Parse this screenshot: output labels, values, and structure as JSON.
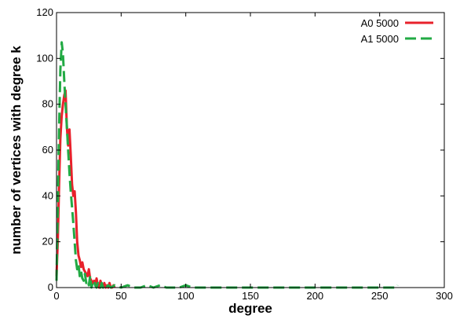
{
  "chart_data": {
    "type": "line",
    "xlabel": "degree",
    "ylabel": "number of vertices with degree k",
    "xlim": [
      0,
      300
    ],
    "ylim": [
      0,
      120
    ],
    "x_ticks": [
      0,
      50,
      100,
      150,
      200,
      250,
      300
    ],
    "y_ticks": [
      0,
      20,
      40,
      60,
      80,
      100,
      120
    ],
    "grid": false,
    "legend_position": "top-right",
    "series": [
      {
        "name": "A0 5000",
        "color": "#e8212b",
        "style": "solid",
        "x": [
          0,
          1,
          2,
          3,
          4,
          5,
          6,
          7,
          8,
          9,
          10,
          11,
          12,
          13,
          14,
          15,
          16,
          17,
          18,
          19,
          20,
          21,
          22,
          23,
          24,
          25,
          26,
          27,
          28,
          29,
          30,
          31,
          32,
          33,
          34,
          35,
          36,
          37,
          38,
          39,
          40,
          41,
          42,
          43,
          44,
          45
        ],
        "y": [
          5,
          20,
          45,
          65,
          75,
          80,
          84,
          86,
          70,
          62,
          69,
          58,
          45,
          40,
          42,
          33,
          20,
          14,
          12,
          9,
          11,
          8,
          7,
          6,
          5,
          8,
          4,
          3,
          2,
          3,
          1,
          4,
          1,
          0,
          3,
          1,
          0,
          2,
          0,
          1,
          0,
          2,
          0,
          0,
          1,
          0
        ]
      },
      {
        "name": "A1 5000",
        "color": "#22aa44",
        "style": "dashed",
        "x": [
          0,
          1,
          2,
          3,
          4,
          5,
          6,
          7,
          8,
          9,
          10,
          11,
          12,
          13,
          14,
          15,
          16,
          17,
          18,
          19,
          20,
          21,
          22,
          23,
          24,
          25,
          26,
          27,
          28,
          29,
          30,
          31,
          32,
          33,
          34,
          35,
          36,
          37,
          38,
          40,
          42,
          45,
          50,
          55,
          60,
          65,
          70,
          75,
          80,
          85,
          90,
          95,
          100,
          105,
          110,
          120,
          130,
          140,
          150,
          160,
          170,
          180,
          190,
          200,
          210,
          220,
          230,
          240,
          250,
          263,
          264
        ],
        "y": [
          3,
          35,
          70,
          95,
          107,
          102,
          90,
          80,
          70,
          60,
          50,
          42,
          35,
          28,
          20,
          12,
          8,
          10,
          5,
          7,
          4,
          3,
          6,
          2,
          3,
          1,
          5,
          0,
          2,
          3,
          1,
          0,
          2,
          1,
          0,
          2,
          0,
          1,
          0,
          1,
          0,
          1,
          0,
          1,
          0,
          0,
          1,
          0,
          1,
          0,
          0,
          0,
          1,
          0,
          0,
          0,
          0,
          0,
          0,
          0,
          0,
          0,
          0,
          0,
          0,
          0,
          0,
          0,
          0,
          0,
          1
        ]
      }
    ]
  }
}
